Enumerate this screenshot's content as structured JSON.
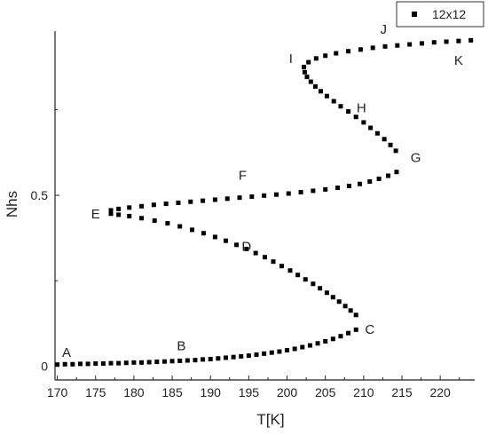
{
  "chart_data": {
    "type": "scatter",
    "xlabel": "T[K]",
    "ylabel": "Nhs",
    "xlim": [
      169.7,
      224.5
    ],
    "ylim": [
      -0.04,
      0.98
    ],
    "x_ticks": [
      "170",
      "175",
      "180",
      "185",
      "190",
      "195",
      "200",
      "205",
      "210",
      "215",
      "220"
    ],
    "x_tick_values": [
      170,
      175,
      180,
      185,
      190,
      195,
      200,
      205,
      210,
      215,
      220
    ],
    "y_ticks": [
      "0",
      "0.5"
    ],
    "y_tick_values": [
      0,
      0.5
    ],
    "marker_color": "#000000",
    "legend": {
      "label": "12x12",
      "position": "top-right"
    },
    "series": [
      {
        "name": "12x12",
        "points": [
          [
            170.0,
            0.005
          ],
          [
            171.0,
            0.006
          ],
          [
            172.0,
            0.006
          ],
          [
            173.0,
            0.007
          ],
          [
            174.0,
            0.007
          ],
          [
            175.0,
            0.008
          ],
          [
            176.0,
            0.008
          ],
          [
            177.0,
            0.009
          ],
          [
            178.0,
            0.009
          ],
          [
            179.0,
            0.01
          ],
          [
            180.0,
            0.011
          ],
          [
            181.0,
            0.011
          ],
          [
            182.0,
            0.012
          ],
          [
            183.0,
            0.013
          ],
          [
            184.0,
            0.014
          ],
          [
            185.0,
            0.015
          ],
          [
            186.0,
            0.016
          ],
          [
            187.0,
            0.017
          ],
          [
            188.0,
            0.018
          ],
          [
            189.0,
            0.02
          ],
          [
            190.0,
            0.021
          ],
          [
            191.0,
            0.023
          ],
          [
            192.0,
            0.025
          ],
          [
            193.0,
            0.027
          ],
          [
            194.0,
            0.029
          ],
          [
            195.0,
            0.031
          ],
          [
            196.0,
            0.034
          ],
          [
            197.0,
            0.037
          ],
          [
            198.0,
            0.04
          ],
          [
            199.0,
            0.043
          ],
          [
            200.0,
            0.047
          ],
          [
            201.0,
            0.051
          ],
          [
            202.0,
            0.056
          ],
          [
            203.0,
            0.061
          ],
          [
            204.0,
            0.067
          ],
          [
            205.0,
            0.073
          ],
          [
            206.0,
            0.08
          ],
          [
            207.0,
            0.088
          ],
          [
            208.0,
            0.097
          ],
          [
            209.0,
            0.107
          ],
          [
            209.0,
            0.15
          ],
          [
            208.3,
            0.163
          ],
          [
            207.6,
            0.176
          ],
          [
            206.8,
            0.189
          ],
          [
            206.0,
            0.202
          ],
          [
            205.2,
            0.215
          ],
          [
            204.3,
            0.228
          ],
          [
            203.4,
            0.241
          ],
          [
            202.4,
            0.254
          ],
          [
            201.4,
            0.267
          ],
          [
            200.4,
            0.28
          ],
          [
            199.3,
            0.293
          ],
          [
            198.2,
            0.306
          ],
          [
            197.1,
            0.319
          ],
          [
            195.9,
            0.331
          ],
          [
            194.7,
            0.343
          ],
          [
            193.4,
            0.355
          ],
          [
            192.0,
            0.367
          ],
          [
            190.6,
            0.378
          ],
          [
            189.1,
            0.389
          ],
          [
            187.6,
            0.399
          ],
          [
            186.0,
            0.409
          ],
          [
            184.4,
            0.418
          ],
          [
            182.7,
            0.426
          ],
          [
            181.0,
            0.433
          ],
          [
            179.4,
            0.439
          ],
          [
            178.0,
            0.443
          ],
          [
            177.0,
            0.446
          ],
          [
            177.0,
            0.456
          ],
          [
            178.0,
            0.46
          ],
          [
            179.4,
            0.464
          ],
          [
            181.0,
            0.468
          ],
          [
            182.6,
            0.472
          ],
          [
            184.2,
            0.475
          ],
          [
            185.8,
            0.478
          ],
          [
            187.4,
            0.481
          ],
          [
            189.0,
            0.484
          ],
          [
            190.6,
            0.487
          ],
          [
            192.2,
            0.49
          ],
          [
            193.8,
            0.493
          ],
          [
            195.4,
            0.496
          ],
          [
            197.0,
            0.499
          ],
          [
            198.6,
            0.502
          ],
          [
            200.2,
            0.505
          ],
          [
            201.8,
            0.509
          ],
          [
            203.4,
            0.513
          ],
          [
            205.0,
            0.517
          ],
          [
            206.6,
            0.522
          ],
          [
            208.1,
            0.527
          ],
          [
            209.5,
            0.533
          ],
          [
            210.8,
            0.54
          ],
          [
            212.0,
            0.548
          ],
          [
            213.2,
            0.557
          ],
          [
            214.3,
            0.568
          ],
          [
            214.2,
            0.63
          ],
          [
            213.5,
            0.647
          ],
          [
            212.7,
            0.664
          ],
          [
            211.8,
            0.681
          ],
          [
            210.9,
            0.697
          ],
          [
            210.0,
            0.713
          ],
          [
            209.0,
            0.729
          ],
          [
            208.0,
            0.745
          ],
          [
            207.0,
            0.76
          ],
          [
            206.1,
            0.775
          ],
          [
            205.2,
            0.79
          ],
          [
            204.4,
            0.804
          ],
          [
            203.7,
            0.818
          ],
          [
            203.1,
            0.832
          ],
          [
            202.6,
            0.846
          ],
          [
            202.3,
            0.86
          ],
          [
            202.2,
            0.875
          ],
          [
            202.8,
            0.889
          ],
          [
            203.8,
            0.9
          ],
          [
            205.0,
            0.908
          ],
          [
            206.4,
            0.915
          ],
          [
            208.0,
            0.921
          ],
          [
            209.6,
            0.926
          ],
          [
            211.2,
            0.931
          ],
          [
            212.8,
            0.935
          ],
          [
            214.4,
            0.938
          ],
          [
            216.0,
            0.941
          ],
          [
            217.6,
            0.944
          ],
          [
            219.2,
            0.947
          ],
          [
            220.8,
            0.949
          ],
          [
            222.4,
            0.951
          ],
          [
            224.0,
            0.953
          ]
        ]
      }
    ],
    "annotations": [
      {
        "label": "A",
        "x": 171.2,
        "y": 0.04
      },
      {
        "label": "B",
        "x": 186.2,
        "y": 0.06
      },
      {
        "label": "C",
        "x": 210.8,
        "y": 0.108
      },
      {
        "label": "D",
        "x": 194.7,
        "y": 0.35
      },
      {
        "label": "E",
        "x": 175.0,
        "y": 0.445
      },
      {
        "label": "F",
        "x": 194.2,
        "y": 0.558
      },
      {
        "label": "G",
        "x": 216.8,
        "y": 0.61
      },
      {
        "label": "H",
        "x": 209.7,
        "y": 0.756
      },
      {
        "label": "I",
        "x": 200.5,
        "y": 0.9
      },
      {
        "label": "J",
        "x": 212.6,
        "y": 0.985
      },
      {
        "label": "K",
        "x": 222.4,
        "y": 0.895
      }
    ]
  }
}
